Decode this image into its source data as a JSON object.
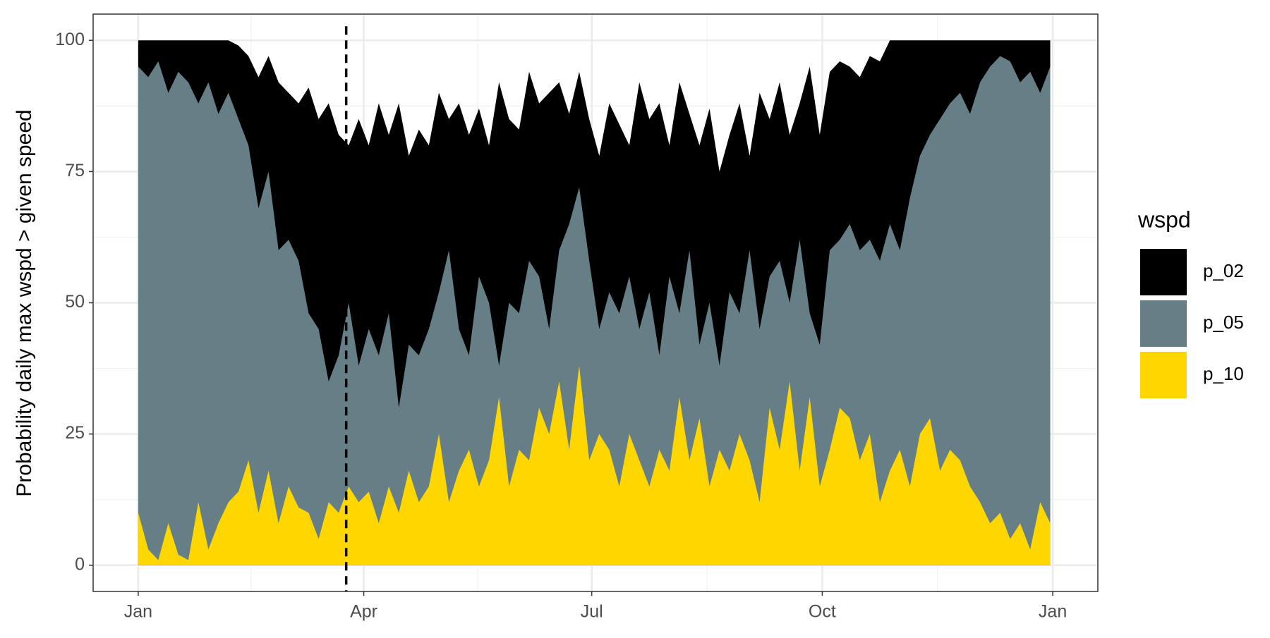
{
  "chart_data": {
    "type": "area",
    "y_label": "Probability daily max wspd > given speed",
    "legend_title": "wspd",
    "legend_position": "right",
    "grid": true,
    "vline": 84,
    "x": [
      1,
      5,
      9,
      13,
      17,
      21,
      25,
      29,
      33,
      37,
      41,
      45,
      49,
      53,
      57,
      61,
      65,
      69,
      73,
      77,
      81,
      85,
      89,
      93,
      97,
      101,
      105,
      109,
      113,
      117,
      121,
      125,
      129,
      133,
      137,
      141,
      145,
      149,
      153,
      157,
      161,
      165,
      169,
      173,
      177,
      181,
      185,
      189,
      193,
      197,
      201,
      205,
      209,
      213,
      217,
      221,
      225,
      229,
      233,
      237,
      241,
      245,
      249,
      253,
      257,
      261,
      265,
      269,
      273,
      277,
      281,
      285,
      289,
      293,
      297,
      301,
      305,
      309,
      313,
      317,
      321,
      325,
      329,
      333,
      337,
      341,
      345,
      349,
      353,
      357,
      361,
      365
    ],
    "xlim": [
      -17,
      384
    ],
    "xticks": [
      {
        "value": 1,
        "label": "Jan"
      },
      {
        "value": 91,
        "label": "Apr"
      },
      {
        "value": 182,
        "label": "Jul"
      },
      {
        "value": 274,
        "label": "Oct"
      },
      {
        "value": 366,
        "label": "Jan"
      }
    ],
    "ylim": [
      -5,
      105
    ],
    "yticks": [
      0,
      25,
      50,
      75,
      100
    ],
    "series": [
      {
        "name": "p_02",
        "color": "#000000",
        "values": [
          100,
          100,
          100,
          100,
          100,
          100,
          100,
          100,
          100,
          100,
          99,
          97,
          93,
          97,
          92,
          90,
          88,
          91,
          85,
          88,
          82,
          80,
          85,
          80,
          88,
          82,
          88,
          78,
          83,
          80,
          90,
          85,
          88,
          82,
          87,
          80,
          92,
          85,
          83,
          94,
          88,
          90,
          92,
          86,
          94,
          85,
          78,
          88,
          84,
          80,
          92,
          85,
          88,
          80,
          92,
          86,
          80,
          87,
          75,
          82,
          88,
          78,
          90,
          85,
          92,
          82,
          88,
          95,
          82,
          94,
          96,
          95,
          93,
          97,
          96,
          100,
          100,
          100,
          100,
          100,
          100,
          100,
          100,
          100,
          100,
          100,
          100,
          100,
          100,
          100,
          100,
          100
        ]
      },
      {
        "name": "p_05",
        "color": "#667f87",
        "values": [
          95,
          93,
          96,
          90,
          94,
          92,
          88,
          92,
          86,
          90,
          85,
          80,
          68,
          75,
          60,
          62,
          58,
          48,
          45,
          35,
          40,
          50,
          38,
          45,
          40,
          48,
          30,
          42,
          40,
          45,
          52,
          60,
          45,
          40,
          55,
          50,
          38,
          50,
          48,
          58,
          55,
          45,
          60,
          65,
          72,
          58,
          45,
          52,
          48,
          55,
          45,
          52,
          40,
          55,
          48,
          60,
          42,
          50,
          38,
          52,
          48,
          60,
          45,
          55,
          58,
          50,
          62,
          48,
          42,
          60,
          62,
          65,
          60,
          62,
          58,
          65,
          60,
          70,
          78,
          82,
          85,
          88,
          90,
          86,
          92,
          95,
          97,
          96,
          92,
          94,
          90,
          95
        ]
      },
      {
        "name": "p_10",
        "color": "#ffd700",
        "values": [
          10,
          3,
          1,
          8,
          2,
          1,
          12,
          3,
          8,
          12,
          14,
          20,
          10,
          18,
          8,
          15,
          11,
          10,
          5,
          12,
          10,
          15,
          12,
          14,
          8,
          15,
          10,
          18,
          12,
          15,
          25,
          12,
          18,
          22,
          15,
          20,
          32,
          15,
          22,
          20,
          30,
          25,
          35,
          22,
          38,
          20,
          25,
          22,
          15,
          25,
          20,
          15,
          22,
          18,
          32,
          20,
          28,
          15,
          22,
          18,
          25,
          20,
          12,
          30,
          22,
          35,
          18,
          32,
          15,
          22,
          30,
          28,
          20,
          25,
          12,
          18,
          22,
          15,
          25,
          28,
          18,
          22,
          20,
          15,
          12,
          8,
          10,
          5,
          8,
          3,
          12,
          8
        ]
      }
    ]
  }
}
